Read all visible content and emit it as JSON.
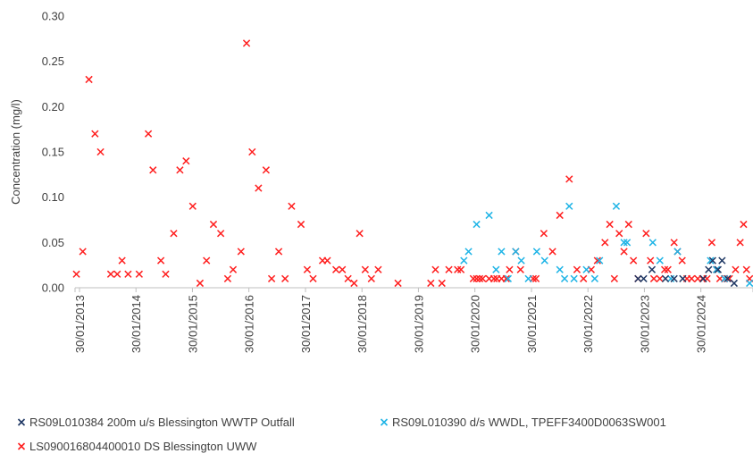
{
  "chart_data": {
    "type": "scatter",
    "ylabel": "Concentration (mg/l)",
    "ylim": [
      0,
      0.3
    ],
    "yticks": [
      "0.00",
      "0.05",
      "0.10",
      "0.15",
      "0.20",
      "0.25",
      "0.30"
    ],
    "ytick_values": [
      0,
      0.05,
      0.1,
      0.15,
      0.2,
      0.25,
      0.3
    ],
    "xlim": [
      "2013-01-01",
      "2025-01-01"
    ],
    "xticks": [
      "30/01/2013",
      "30/01/2014",
      "30/01/2015",
      "30/01/2016",
      "30/01/2017",
      "30/01/2018",
      "30/01/2019",
      "30/01/2020",
      "30/01/2021",
      "30/01/2022",
      "30/01/2023",
      "30/01/2024"
    ],
    "xtick_dates": [
      "2013-01-30",
      "2014-01-30",
      "2015-01-30",
      "2016-01-30",
      "2017-01-30",
      "2018-01-30",
      "2019-01-30",
      "2020-01-30",
      "2021-01-30",
      "2022-01-30",
      "2023-01-30",
      "2024-01-30"
    ],
    "gridlines": false,
    "marker": "x",
    "legend_position": "bottom",
    "series": [
      {
        "name": "RS09L010384 200m u/s Blessington WWTP Outfall",
        "color": "#1f3864",
        "points": [
          {
            "x": "2022-12-20",
            "y": 0.01
          },
          {
            "x": "2023-01-25",
            "y": 0.01
          },
          {
            "x": "2023-03-20",
            "y": 0.02
          },
          {
            "x": "2023-06-15",
            "y": 0.01
          },
          {
            "x": "2023-08-10",
            "y": 0.01
          },
          {
            "x": "2023-10-05",
            "y": 0.01
          },
          {
            "x": "2024-02-15",
            "y": 0.01
          },
          {
            "x": "2024-03-20",
            "y": 0.02
          },
          {
            "x": "2024-04-15",
            "y": 0.03
          },
          {
            "x": "2024-05-20",
            "y": 0.02
          },
          {
            "x": "2024-06-15",
            "y": 0.03
          },
          {
            "x": "2024-07-20",
            "y": 0.01
          },
          {
            "x": "2024-09-01",
            "y": 0.005
          }
        ]
      },
      {
        "name": "RS09L010390 d/s WWDL, TPEFF3400D0063SW001",
        "color": "#1eb4e6",
        "points": [
          {
            "x": "2019-11-20",
            "y": 0.03
          },
          {
            "x": "2019-12-20",
            "y": 0.04
          },
          {
            "x": "2020-02-10",
            "y": 0.07
          },
          {
            "x": "2020-05-01",
            "y": 0.08
          },
          {
            "x": "2020-06-15",
            "y": 0.02
          },
          {
            "x": "2020-07-20",
            "y": 0.04
          },
          {
            "x": "2020-09-01",
            "y": 0.01
          },
          {
            "x": "2020-10-20",
            "y": 0.04
          },
          {
            "x": "2020-11-25",
            "y": 0.03
          },
          {
            "x": "2021-01-10",
            "y": 0.01
          },
          {
            "x": "2021-03-05",
            "y": 0.04
          },
          {
            "x": "2021-04-25",
            "y": 0.03
          },
          {
            "x": "2021-08-01",
            "y": 0.02
          },
          {
            "x": "2021-09-01",
            "y": 0.01
          },
          {
            "x": "2021-10-01",
            "y": 0.09
          },
          {
            "x": "2021-11-01",
            "y": 0.01
          },
          {
            "x": "2022-01-20",
            "y": 0.02
          },
          {
            "x": "2022-03-15",
            "y": 0.01
          },
          {
            "x": "2022-04-15",
            "y": 0.03
          },
          {
            "x": "2022-08-01",
            "y": 0.09
          },
          {
            "x": "2022-09-20",
            "y": 0.05
          },
          {
            "x": "2022-10-10",
            "y": 0.05
          },
          {
            "x": "2023-03-25",
            "y": 0.05
          },
          {
            "x": "2023-05-10",
            "y": 0.03
          },
          {
            "x": "2023-07-20",
            "y": 0.01
          },
          {
            "x": "2023-09-01",
            "y": 0.04
          },
          {
            "x": "2024-04-01",
            "y": 0.03
          },
          {
            "x": "2024-05-10",
            "y": 0.02
          },
          {
            "x": "2024-07-01",
            "y": 0.01
          },
          {
            "x": "2024-12-10",
            "y": 0.005
          }
        ]
      },
      {
        "name": "LS090016804400010 DS Blessington UWW",
        "color": "#ff1f1f",
        "points": [
          {
            "x": "2013-01-10",
            "y": 0.015
          },
          {
            "x": "2013-02-20",
            "y": 0.04
          },
          {
            "x": "2013-04-01",
            "y": 0.23
          },
          {
            "x": "2013-05-10",
            "y": 0.17
          },
          {
            "x": "2013-06-15",
            "y": 0.15
          },
          {
            "x": "2013-08-20",
            "y": 0.015
          },
          {
            "x": "2013-10-01",
            "y": 0.015
          },
          {
            "x": "2013-11-01",
            "y": 0.03
          },
          {
            "x": "2013-12-10",
            "y": 0.015
          },
          {
            "x": "2014-02-20",
            "y": 0.015
          },
          {
            "x": "2014-04-20",
            "y": 0.17
          },
          {
            "x": "2014-05-20",
            "y": 0.13
          },
          {
            "x": "2014-07-10",
            "y": 0.03
          },
          {
            "x": "2014-08-10",
            "y": 0.015
          },
          {
            "x": "2014-10-01",
            "y": 0.06
          },
          {
            "x": "2014-11-10",
            "y": 0.13
          },
          {
            "x": "2014-12-20",
            "y": 0.14
          },
          {
            "x": "2015-02-01",
            "y": 0.09
          },
          {
            "x": "2015-03-20",
            "y": 0.005
          },
          {
            "x": "2015-05-01",
            "y": 0.03
          },
          {
            "x": "2015-06-15",
            "y": 0.07
          },
          {
            "x": "2015-08-01",
            "y": 0.06
          },
          {
            "x": "2015-09-15",
            "y": 0.01
          },
          {
            "x": "2015-10-20",
            "y": 0.02
          },
          {
            "x": "2015-12-10",
            "y": 0.04
          },
          {
            "x": "2016-01-15",
            "y": 0.27
          },
          {
            "x": "2016-02-20",
            "y": 0.15
          },
          {
            "x": "2016-04-01",
            "y": 0.11
          },
          {
            "x": "2016-05-20",
            "y": 0.13
          },
          {
            "x": "2016-06-25",
            "y": 0.01
          },
          {
            "x": "2016-08-10",
            "y": 0.04
          },
          {
            "x": "2016-09-20",
            "y": 0.01
          },
          {
            "x": "2016-11-01",
            "y": 0.09
          },
          {
            "x": "2017-01-01",
            "y": 0.07
          },
          {
            "x": "2017-02-10",
            "y": 0.02
          },
          {
            "x": "2017-03-20",
            "y": 0.01
          },
          {
            "x": "2017-05-20",
            "y": 0.03
          },
          {
            "x": "2017-06-20",
            "y": 0.03
          },
          {
            "x": "2017-08-15",
            "y": 0.02
          },
          {
            "x": "2017-09-25",
            "y": 0.02
          },
          {
            "x": "2017-11-01",
            "y": 0.01
          },
          {
            "x": "2017-12-10",
            "y": 0.005
          },
          {
            "x": "2018-01-15",
            "y": 0.06
          },
          {
            "x": "2018-02-20",
            "y": 0.02
          },
          {
            "x": "2018-04-01",
            "y": 0.01
          },
          {
            "x": "2018-05-15",
            "y": 0.02
          },
          {
            "x": "2018-09-20",
            "y": 0.005
          },
          {
            "x": "2019-04-20",
            "y": 0.005
          },
          {
            "x": "2019-05-20",
            "y": 0.02
          },
          {
            "x": "2019-07-01",
            "y": 0.005
          },
          {
            "x": "2019-08-15",
            "y": 0.02
          },
          {
            "x": "2019-10-10",
            "y": 0.02
          },
          {
            "x": "2019-11-01",
            "y": 0.02
          },
          {
            "x": "2020-01-20",
            "y": 0.01
          },
          {
            "x": "2020-02-10",
            "y": 0.01
          },
          {
            "x": "2020-03-01",
            "y": 0.01
          },
          {
            "x": "2020-03-20",
            "y": 0.01
          },
          {
            "x": "2020-05-01",
            "y": 0.01
          },
          {
            "x": "2020-06-01",
            "y": 0.01
          },
          {
            "x": "2020-06-20",
            "y": 0.01
          },
          {
            "x": "2020-07-20",
            "y": 0.01
          },
          {
            "x": "2020-08-20",
            "y": 0.01
          },
          {
            "x": "2020-09-10",
            "y": 0.02
          },
          {
            "x": "2020-10-20",
            "y": 0.04
          },
          {
            "x": "2020-11-20",
            "y": 0.02
          },
          {
            "x": "2021-02-10",
            "y": 0.01
          },
          {
            "x": "2021-02-28",
            "y": 0.01
          },
          {
            "x": "2021-04-20",
            "y": 0.06
          },
          {
            "x": "2021-06-15",
            "y": 0.04
          },
          {
            "x": "2021-08-01",
            "y": 0.08
          },
          {
            "x": "2021-10-01",
            "y": 0.12
          },
          {
            "x": "2021-11-20",
            "y": 0.02
          },
          {
            "x": "2022-01-01",
            "y": 0.01
          },
          {
            "x": "2022-02-20",
            "y": 0.02
          },
          {
            "x": "2022-04-01",
            "y": 0.03
          },
          {
            "x": "2022-05-20",
            "y": 0.05
          },
          {
            "x": "2022-06-20",
            "y": 0.07
          },
          {
            "x": "2022-07-20",
            "y": 0.01
          },
          {
            "x": "2022-08-20",
            "y": 0.06
          },
          {
            "x": "2022-09-20",
            "y": 0.04
          },
          {
            "x": "2022-10-20",
            "y": 0.07
          },
          {
            "x": "2022-11-20",
            "y": 0.03
          },
          {
            "x": "2022-12-20",
            "y": 0.01
          },
          {
            "x": "2023-02-10",
            "y": 0.06
          },
          {
            "x": "2023-03-10",
            "y": 0.03
          },
          {
            "x": "2023-04-01",
            "y": 0.01
          },
          {
            "x": "2023-05-10",
            "y": 0.01
          },
          {
            "x": "2023-06-10",
            "y": 0.02
          },
          {
            "x": "2023-07-01",
            "y": 0.02
          },
          {
            "x": "2023-08-10",
            "y": 0.05
          },
          {
            "x": "2023-09-01",
            "y": 0.04
          },
          {
            "x": "2023-10-01",
            "y": 0.03
          },
          {
            "x": "2023-11-01",
            "y": 0.01
          },
          {
            "x": "2023-12-01",
            "y": 0.01
          },
          {
            "x": "2024-01-10",
            "y": 0.01
          },
          {
            "x": "2024-02-10",
            "y": 0.01
          },
          {
            "x": "2024-03-10",
            "y": 0.01
          },
          {
            "x": "2024-04-10",
            "y": 0.05
          },
          {
            "x": "2024-05-10",
            "y": 0.02
          },
          {
            "x": "2024-06-01",
            "y": 0.01
          },
          {
            "x": "2024-07-01",
            "y": 0.01
          },
          {
            "x": "2024-08-01",
            "y": 0.01
          },
          {
            "x": "2024-09-10",
            "y": 0.02
          },
          {
            "x": "2024-10-10",
            "y": 0.05
          },
          {
            "x": "2024-11-01",
            "y": 0.07
          },
          {
            "x": "2024-11-20",
            "y": 0.02
          },
          {
            "x": "2024-12-10",
            "y": 0.01
          }
        ]
      }
    ]
  }
}
